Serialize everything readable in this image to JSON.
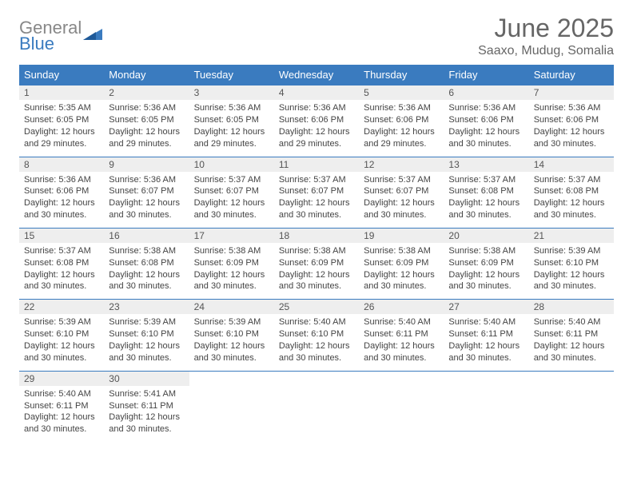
{
  "brand": {
    "word1": "General",
    "word2": "Blue"
  },
  "title": {
    "month": "June 2025",
    "location": "Saaxo, Mudug, Somalia"
  },
  "styling": {
    "header_bg": "#3a7bbf",
    "header_text_color": "#ffffff",
    "daynum_bg": "#eeeeee",
    "row_border_color": "#3a7bbf",
    "body_text_color": "#444444",
    "page_bg": "#ffffff",
    "month_title_fontsize": 32,
    "location_fontsize": 16,
    "day_header_fontsize": 13,
    "daynum_fontsize": 12,
    "daybody_fontsize": 11,
    "logo_gray": "#888888",
    "logo_blue": "#3a7bbf"
  },
  "day_headers": [
    "Sunday",
    "Monday",
    "Tuesday",
    "Wednesday",
    "Thursday",
    "Friday",
    "Saturday"
  ],
  "weeks": [
    [
      {
        "n": "1",
        "sunrise": "5:35 AM",
        "sunset": "6:05 PM",
        "daylight": "12 hours and 29 minutes."
      },
      {
        "n": "2",
        "sunrise": "5:36 AM",
        "sunset": "6:05 PM",
        "daylight": "12 hours and 29 minutes."
      },
      {
        "n": "3",
        "sunrise": "5:36 AM",
        "sunset": "6:05 PM",
        "daylight": "12 hours and 29 minutes."
      },
      {
        "n": "4",
        "sunrise": "5:36 AM",
        "sunset": "6:06 PM",
        "daylight": "12 hours and 29 minutes."
      },
      {
        "n": "5",
        "sunrise": "5:36 AM",
        "sunset": "6:06 PM",
        "daylight": "12 hours and 29 minutes."
      },
      {
        "n": "6",
        "sunrise": "5:36 AM",
        "sunset": "6:06 PM",
        "daylight": "12 hours and 30 minutes."
      },
      {
        "n": "7",
        "sunrise": "5:36 AM",
        "sunset": "6:06 PM",
        "daylight": "12 hours and 30 minutes."
      }
    ],
    [
      {
        "n": "8",
        "sunrise": "5:36 AM",
        "sunset": "6:06 PM",
        "daylight": "12 hours and 30 minutes."
      },
      {
        "n": "9",
        "sunrise": "5:36 AM",
        "sunset": "6:07 PM",
        "daylight": "12 hours and 30 minutes."
      },
      {
        "n": "10",
        "sunrise": "5:37 AM",
        "sunset": "6:07 PM",
        "daylight": "12 hours and 30 minutes."
      },
      {
        "n": "11",
        "sunrise": "5:37 AM",
        "sunset": "6:07 PM",
        "daylight": "12 hours and 30 minutes."
      },
      {
        "n": "12",
        "sunrise": "5:37 AM",
        "sunset": "6:07 PM",
        "daylight": "12 hours and 30 minutes."
      },
      {
        "n": "13",
        "sunrise": "5:37 AM",
        "sunset": "6:08 PM",
        "daylight": "12 hours and 30 minutes."
      },
      {
        "n": "14",
        "sunrise": "5:37 AM",
        "sunset": "6:08 PM",
        "daylight": "12 hours and 30 minutes."
      }
    ],
    [
      {
        "n": "15",
        "sunrise": "5:37 AM",
        "sunset": "6:08 PM",
        "daylight": "12 hours and 30 minutes."
      },
      {
        "n": "16",
        "sunrise": "5:38 AM",
        "sunset": "6:08 PM",
        "daylight": "12 hours and 30 minutes."
      },
      {
        "n": "17",
        "sunrise": "5:38 AM",
        "sunset": "6:09 PM",
        "daylight": "12 hours and 30 minutes."
      },
      {
        "n": "18",
        "sunrise": "5:38 AM",
        "sunset": "6:09 PM",
        "daylight": "12 hours and 30 minutes."
      },
      {
        "n": "19",
        "sunrise": "5:38 AM",
        "sunset": "6:09 PM",
        "daylight": "12 hours and 30 minutes."
      },
      {
        "n": "20",
        "sunrise": "5:38 AM",
        "sunset": "6:09 PM",
        "daylight": "12 hours and 30 minutes."
      },
      {
        "n": "21",
        "sunrise": "5:39 AM",
        "sunset": "6:10 PM",
        "daylight": "12 hours and 30 minutes."
      }
    ],
    [
      {
        "n": "22",
        "sunrise": "5:39 AM",
        "sunset": "6:10 PM",
        "daylight": "12 hours and 30 minutes."
      },
      {
        "n": "23",
        "sunrise": "5:39 AM",
        "sunset": "6:10 PM",
        "daylight": "12 hours and 30 minutes."
      },
      {
        "n": "24",
        "sunrise": "5:39 AM",
        "sunset": "6:10 PM",
        "daylight": "12 hours and 30 minutes."
      },
      {
        "n": "25",
        "sunrise": "5:40 AM",
        "sunset": "6:10 PM",
        "daylight": "12 hours and 30 minutes."
      },
      {
        "n": "26",
        "sunrise": "5:40 AM",
        "sunset": "6:11 PM",
        "daylight": "12 hours and 30 minutes."
      },
      {
        "n": "27",
        "sunrise": "5:40 AM",
        "sunset": "6:11 PM",
        "daylight": "12 hours and 30 minutes."
      },
      {
        "n": "28",
        "sunrise": "5:40 AM",
        "sunset": "6:11 PM",
        "daylight": "12 hours and 30 minutes."
      }
    ],
    [
      {
        "n": "29",
        "sunrise": "5:40 AM",
        "sunset": "6:11 PM",
        "daylight": "12 hours and 30 minutes."
      },
      {
        "n": "30",
        "sunrise": "5:41 AM",
        "sunset": "6:11 PM",
        "daylight": "12 hours and 30 minutes."
      },
      null,
      null,
      null,
      null,
      null
    ]
  ],
  "labels": {
    "sunrise": "Sunrise: ",
    "sunset": "Sunset: ",
    "daylight": "Daylight: "
  }
}
